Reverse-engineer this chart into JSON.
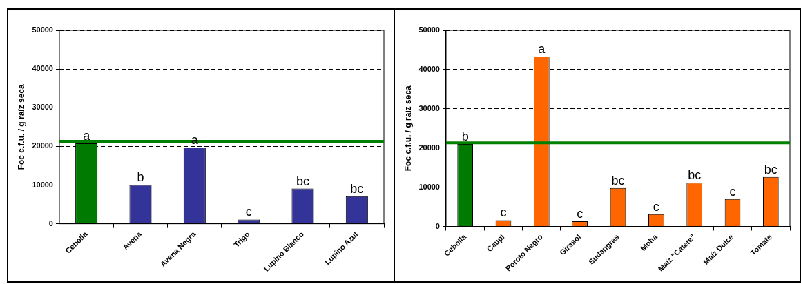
{
  "chart_data": [
    {
      "type": "bar",
      "ylabel": "Foc c.f.u. / g raíz seca",
      "categories": [
        "Cebolla",
        "Avena",
        "Avena Negra",
        "Trigo",
        "Lupino Blanco",
        "Lupino Azul"
      ],
      "values": [
        20800,
        10000,
        19700,
        1100,
        9100,
        7100
      ],
      "colors": [
        "#007a00",
        "#333399",
        "#333399",
        "#333399",
        "#333399",
        "#333399"
      ],
      "ylim": [
        0,
        50000
      ],
      "yticks": [
        0,
        10000,
        20000,
        30000,
        40000,
        50000
      ],
      "grid": "y",
      "legend": false,
      "ref_lines": [
        {
          "axis": "y",
          "value": 21300,
          "color": "#008000"
        }
      ],
      "annotations": [
        {
          "text": "a",
          "x": "Cebolla",
          "y": 20800
        },
        {
          "text": "b",
          "x": "Avena",
          "y": 10000
        },
        {
          "text": "a",
          "x": "Avena Negra",
          "y": 19700
        },
        {
          "text": "c",
          "x": "Trigo",
          "y": 1100
        },
        {
          "text": "bc",
          "x": "Lupino Blanco",
          "y": 9100
        },
        {
          "text": "bc",
          "x": "Lupino Azul",
          "y": 7100
        }
      ]
    },
    {
      "type": "bar",
      "ylabel": "Foc c.f.u. / g raíz seca",
      "categories": [
        "Cebolla",
        "Caupí",
        "Poroto Negro",
        "Girasol",
        "Sudangras",
        "Moha",
        "Maíz \"Catete\"",
        "Maíz Dulce",
        "Tomate"
      ],
      "values": [
        21000,
        1600,
        43300,
        1300,
        9800,
        3100,
        11100,
        7000,
        12600
      ],
      "colors": [
        "#007a00",
        "#ff6600",
        "#ff6600",
        "#ff6600",
        "#ff6600",
        "#ff6600",
        "#ff6600",
        "#ff6600",
        "#ff6600"
      ],
      "ylim": [
        0,
        50000
      ],
      "yticks": [
        0,
        10000,
        20000,
        30000,
        40000,
        50000
      ],
      "grid": "y",
      "legend": false,
      "ref_lines": [
        {
          "axis": "y",
          "value": 21300,
          "color": "#008000"
        }
      ],
      "annotations": [
        {
          "text": "b",
          "x": "Cebolla",
          "y": 21000
        },
        {
          "text": "c",
          "x": "Caupí",
          "y": 1600
        },
        {
          "text": "a",
          "x": "Poroto Negro",
          "y": 43300
        },
        {
          "text": "c",
          "x": "Girasol",
          "y": 1300
        },
        {
          "text": "bc",
          "x": "Sudangras",
          "y": 9800
        },
        {
          "text": "c",
          "x": "Moha",
          "y": 3100
        },
        {
          "text": "bc",
          "x": "Maíz \"Catete\"",
          "y": 11100
        },
        {
          "text": "c",
          "x": "Maíz Dulce",
          "y": 7000
        },
        {
          "text": "bc",
          "x": "Tomate",
          "y": 12600
        }
      ]
    }
  ]
}
